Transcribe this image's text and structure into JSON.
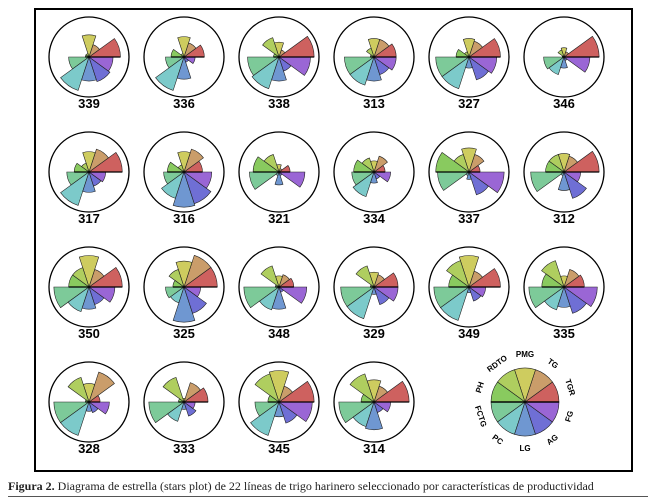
{
  "caption": {
    "label": "Figura 2.",
    "text": " Diagrama de estrella (stars plot) de 22 líneas de trigo harinero seleccionado por características de productividad"
  },
  "chart_data": {
    "type": "stars",
    "title": "Diagrama de estrella (stars plot) de 22 líneas de trigo harinero",
    "variables": [
      "TGR",
      "TG",
      "PMG",
      "RDTO",
      "PH",
      "FCTG",
      "PC",
      "LG",
      "AG",
      "FG"
    ],
    "variable_colors": [
      "#c9504e",
      "#c4925a",
      "#c9c64e",
      "#a6c94e",
      "#7cc44e",
      "#6fc48e",
      "#6ec4c4",
      "#5f8ccc",
      "#5f5fd0",
      "#8f55d0"
    ],
    "value_scale": [
      0,
      1
    ],
    "stars": [
      {
        "name": "339",
        "values": [
          0.85,
          0.35,
          0.6,
          0.1,
          0.1,
          0.55,
          0.95,
          0.65,
          0.7,
          0.65
        ]
      },
      {
        "name": "336",
        "values": [
          0.55,
          0.4,
          0.55,
          0.1,
          0.35,
          0.5,
          0.95,
          0.6,
          0.15,
          0.3
        ]
      },
      {
        "name": "338",
        "values": [
          0.95,
          0.2,
          0.4,
          0.55,
          0.15,
          0.85,
          0.9,
          0.65,
          0.4,
          0.85
        ]
      },
      {
        "name": "313",
        "values": [
          0.6,
          0.5,
          0.5,
          0.25,
          0.1,
          0.8,
          0.8,
          0.65,
          0.5,
          0.6
        ]
      },
      {
        "name": "327",
        "values": [
          0.85,
          0.45,
          0.5,
          0.15,
          0.35,
          0.9,
          0.9,
          0.3,
          0.65,
          0.75
        ]
      },
      {
        "name": "346",
        "values": [
          0.95,
          0.15,
          0.25,
          0.2,
          0.05,
          0.55,
          0.5,
          0.3,
          0.1,
          0.7
        ]
      },
      {
        "name": "317",
        "values": [
          0.9,
          0.65,
          0.55,
          0.25,
          0.4,
          0.6,
          0.95,
          0.55,
          0.4,
          0.45
        ]
      },
      {
        "name": "316",
        "values": [
          0.5,
          0.65,
          0.55,
          0.2,
          0.45,
          0.55,
          0.75,
          0.95,
          0.9,
          0.75
        ]
      },
      {
        "name": "321",
        "values": [
          0.3,
          0.1,
          0.2,
          0.5,
          0.7,
          0.8,
          0.1,
          0.35,
          0.1,
          0.7
        ]
      },
      {
        "name": "334",
        "values": [
          0.3,
          0.45,
          0.3,
          0.4,
          0.55,
          0.6,
          0.7,
          0.3,
          0.2,
          0.45
        ]
      },
      {
        "name": "337",
        "values": [
          0.3,
          0.5,
          0.65,
          0.5,
          0.9,
          0.85,
          0.1,
          0.2,
          0.65,
          0.95
        ]
      },
      {
        "name": "312",
        "values": [
          0.95,
          0.45,
          0.5,
          0.5,
          0.5,
          0.9,
          0.1,
          0.5,
          0.75,
          0.45
        ]
      },
      {
        "name": "350",
        "values": [
          0.9,
          0.5,
          0.85,
          0.55,
          0.55,
          0.95,
          0.7,
          0.6,
          0.5,
          0.7
        ]
      },
      {
        "name": "325",
        "values": [
          0.9,
          0.9,
          0.7,
          0.5,
          0.3,
          0.5,
          0.45,
          0.95,
          0.75,
          0.45
        ]
      },
      {
        "name": "348",
        "values": [
          0.4,
          0.35,
          0.3,
          0.6,
          0.1,
          0.95,
          0.65,
          0.6,
          0.15,
          0.75
        ]
      },
      {
        "name": "329",
        "values": [
          0.65,
          0.35,
          0.4,
          0.6,
          0.1,
          0.9,
          0.9,
          0.2,
          0.5,
          0.65
        ]
      },
      {
        "name": "349",
        "values": [
          0.85,
          0.45,
          0.85,
          0.75,
          0.55,
          0.95,
          0.95,
          0.15,
          0.4,
          0.45
        ]
      },
      {
        "name": "335",
        "values": [
          0.55,
          0.5,
          0.3,
          0.75,
          0.6,
          0.95,
          0.65,
          0.55,
          0.75,
          0.9
        ]
      },
      {
        "name": "328",
        "values": [
          0.3,
          0.85,
          0.5,
          0.7,
          0.1,
          0.95,
          0.95,
          0.25,
          0.3,
          0.55
        ]
      },
      {
        "name": "333",
        "values": [
          0.65,
          0.55,
          0.1,
          0.7,
          0.15,
          0.95,
          0.55,
          0.2,
          0.4,
          0.3
        ]
      },
      {
        "name": "345",
        "values": [
          0.95,
          0.45,
          0.85,
          0.8,
          0.3,
          0.65,
          0.95,
          0.4,
          0.6,
          0.9
        ]
      },
      {
        "name": "314",
        "values": [
          0.95,
          0.45,
          0.6,
          0.8,
          0.35,
          0.95,
          0.7,
          0.75,
          0.3,
          0.45
        ]
      }
    ],
    "key": {
      "name": "key",
      "labels": [
        "TGR",
        "TG",
        "PMG",
        "RDTO",
        "PH",
        "FCTG",
        "PC",
        "LG",
        "AG",
        "FG"
      ]
    },
    "layout": {
      "columns": 6,
      "rows": 4
    }
  }
}
